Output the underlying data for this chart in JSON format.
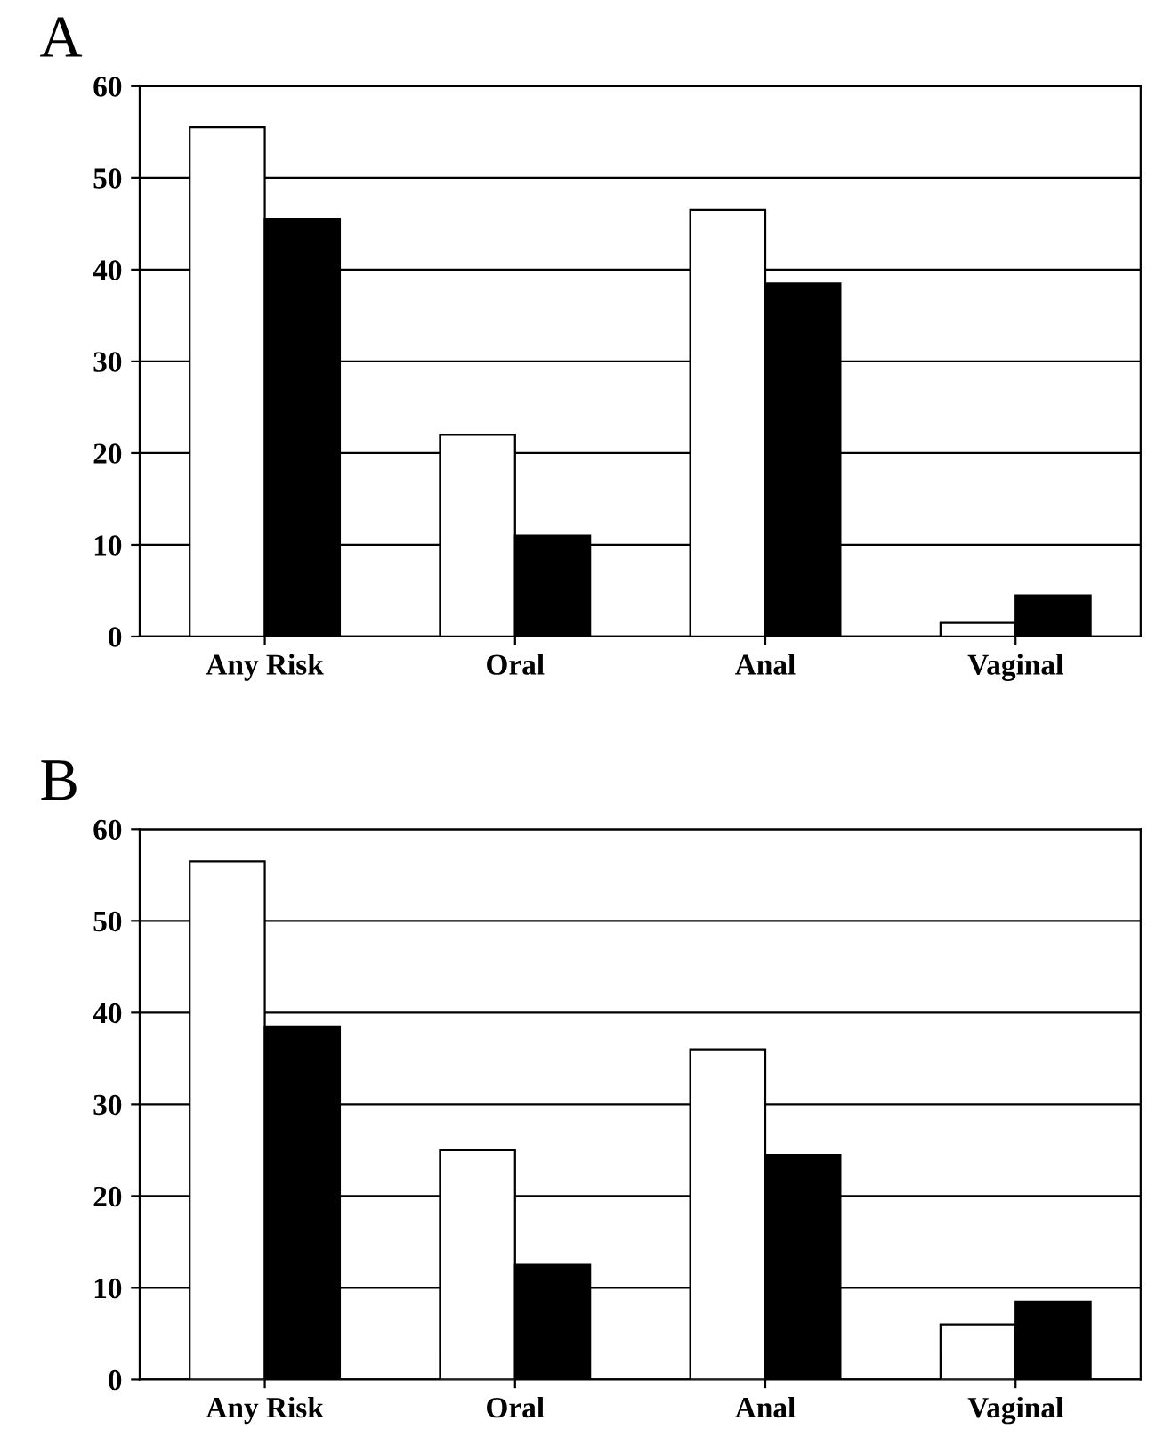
{
  "chart_data": [
    {
      "type": "bar",
      "title": "A",
      "categories": [
        "Any Risk",
        "Oral",
        "Anal",
        "Vaginal"
      ],
      "series": [
        {
          "color": "#ffffff",
          "values": [
            55.5,
            22,
            46.5,
            1.5
          ]
        },
        {
          "color": "#000000",
          "values": [
            45.5,
            11,
            38.5,
            4.5
          ]
        }
      ],
      "ylim": [
        0,
        60
      ],
      "yticks": [
        0,
        10,
        20,
        30,
        40,
        50,
        60
      ],
      "grid": "y"
    },
    {
      "type": "bar",
      "title": "B",
      "categories": [
        "Any Risk",
        "Oral",
        "Anal",
        "Vaginal"
      ],
      "series": [
        {
          "color": "#ffffff",
          "values": [
            56.5,
            25,
            36,
            6
          ]
        },
        {
          "color": "#000000",
          "values": [
            38.5,
            12.5,
            24.5,
            8.5
          ]
        }
      ],
      "ylim": [
        0,
        60
      ],
      "yticks": [
        0,
        10,
        20,
        30,
        40,
        50,
        60
      ],
      "grid": "y"
    }
  ]
}
